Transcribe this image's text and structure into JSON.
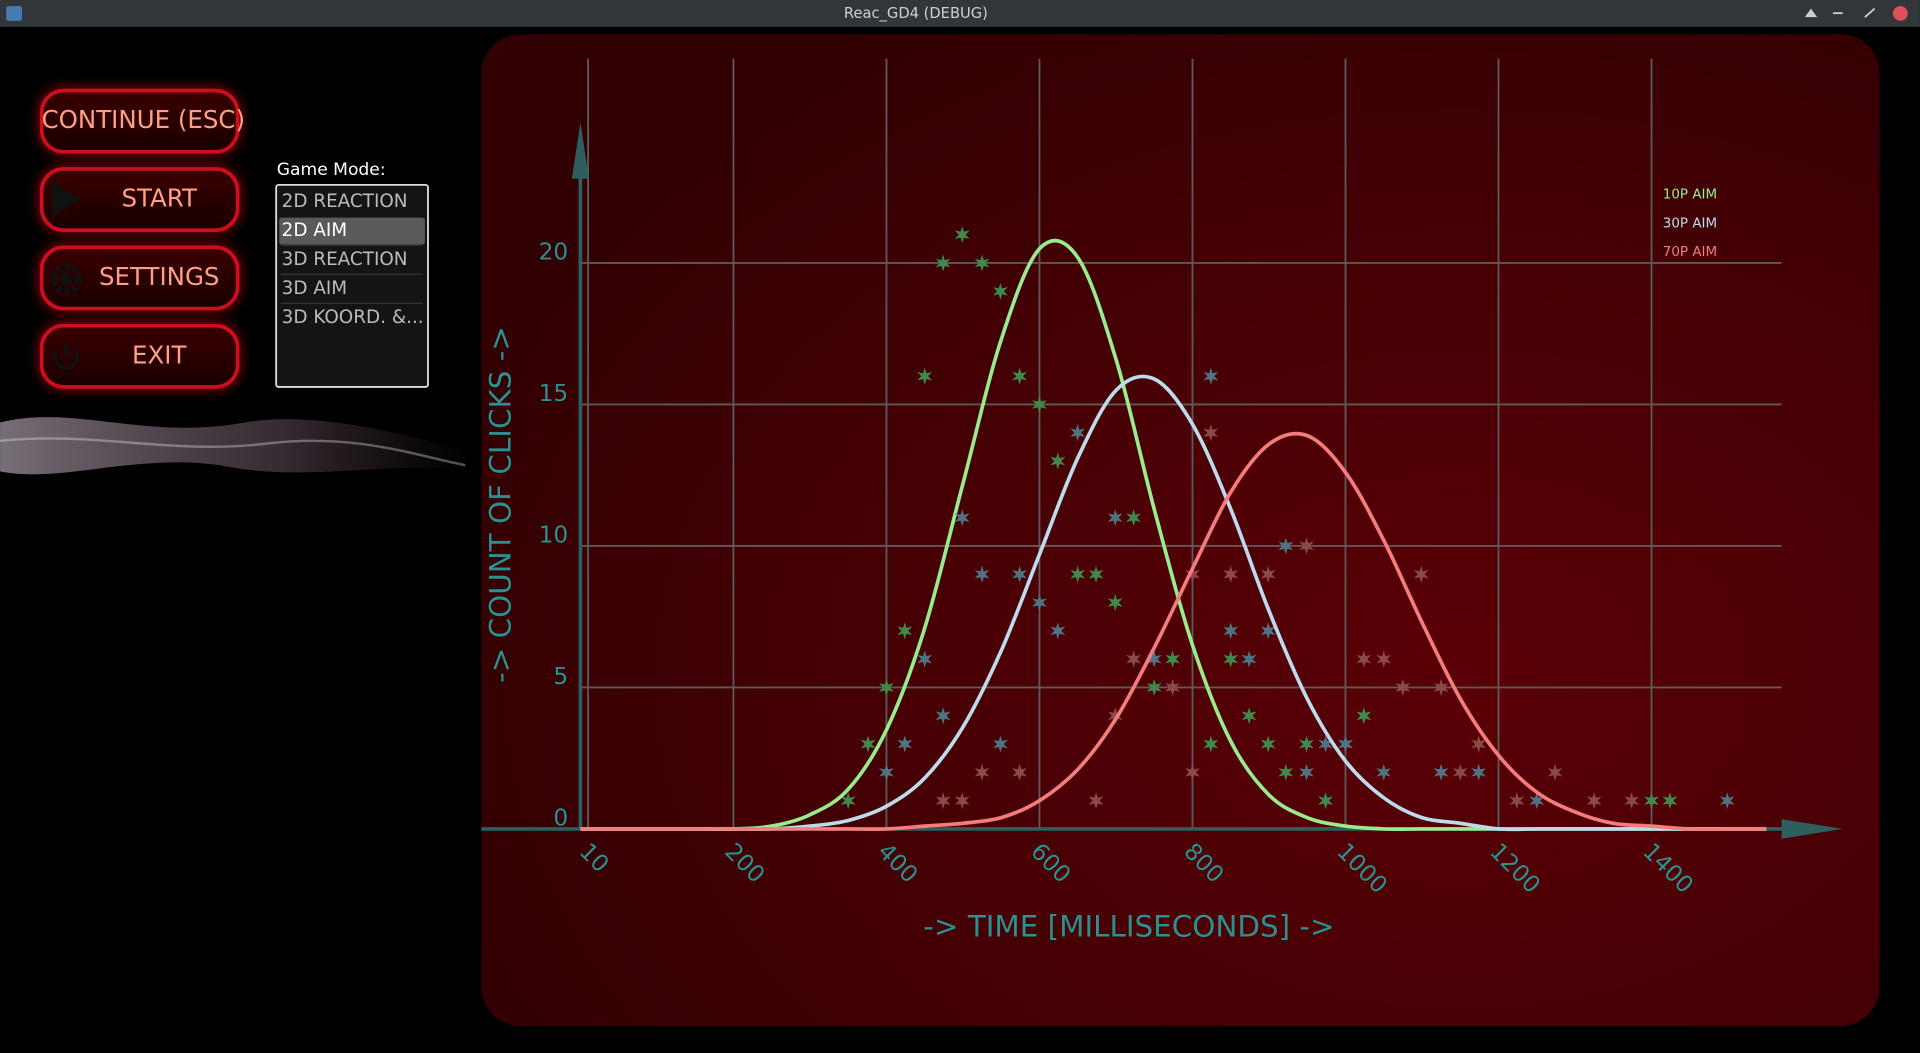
{
  "window": {
    "title": "Reac_GD4 (DEBUG)"
  },
  "menu": {
    "buttons": [
      "CONTINUE (ESC)",
      "START",
      "SETTINGS",
      "EXIT"
    ]
  },
  "game_mode": {
    "label": "Game Mode:",
    "options": [
      "2D REACTION",
      "2D AIM",
      "3D REACTION",
      "3D AIM",
      "3D KOORD. &..."
    ],
    "selected_index": 1
  },
  "chart_data": {
    "type": "line",
    "x_label": "-> TIME [MILLISECONDS] ->",
    "y_label": "-> COUNT OF CLICKS ->",
    "xlim": [
      0,
      1570
    ],
    "ylim": [
      0,
      27
    ],
    "xticks": [
      10,
      200,
      400,
      600,
      800,
      1000,
      1200,
      1400
    ],
    "yticks": [
      0,
      5,
      10,
      15,
      20
    ],
    "grid": true,
    "legend": "top-right",
    "x": [
      0,
      50,
      100,
      150,
      200,
      250,
      300,
      350,
      400,
      450,
      500,
      550,
      600,
      650,
      700,
      750,
      800,
      850,
      900,
      950,
      1000,
      1050,
      1100,
      1150,
      1200,
      1250,
      1300,
      1350,
      1400,
      1450,
      1500,
      1550
    ],
    "series": [
      {
        "name": "10P AIM",
        "color": "#98ec8c",
        "point_color": "#3f8a4a",
        "values": [
          0,
          0,
          0,
          0,
          0,
          0.1,
          0.5,
          1.4,
          3.5,
          7.1,
          12.2,
          17.3,
          20.5,
          20.2,
          16.6,
          11.3,
          6.5,
          3.1,
          1.2,
          0.4,
          0.1,
          0,
          0,
          0,
          0,
          0,
          0,
          0,
          0,
          0,
          0,
          0
        ],
        "points": {
          "x": [
            499,
            474,
            525,
            549,
            450,
            574,
            600,
            624,
            424,
            400,
            376,
            350,
            650,
            674,
            699,
            750,
            774,
            824,
            850,
            874,
            899,
            922,
            949,
            974,
            1024,
            1000,
            1400,
            1424,
            723
          ],
          "y": [
            21,
            20,
            20,
            19,
            16,
            16,
            15,
            13,
            7,
            5,
            3,
            1,
            9,
            9,
            8,
            5,
            6,
            3,
            6,
            4,
            3,
            2,
            3,
            1,
            4,
            3,
            1,
            1,
            11
          ]
        }
      },
      {
        "name": "30P AIM",
        "color": "#bcdcee",
        "point_color": "#4f7382",
        "values": [
          0,
          0,
          0,
          0,
          0,
          0,
          0.1,
          0.3,
          0.8,
          1.8,
          3.6,
          6.3,
          9.7,
          13.1,
          15.5,
          15.9,
          14.3,
          11.3,
          7.7,
          4.6,
          2.4,
          1.1,
          0.4,
          0.2,
          0,
          0,
          0,
          0,
          0,
          0,
          0,
          0
        ],
        "points": {
          "x": [
            499,
            525,
            474,
            450,
            424,
            400,
            574,
            549,
            600,
            624,
            650,
            699,
            824,
            750,
            850,
            874,
            899,
            922,
            974,
            1000,
            949,
            1050,
            1125,
            1174,
            1250,
            1499
          ],
          "y": [
            11,
            9,
            4,
            6,
            3,
            2,
            9,
            3,
            8,
            7,
            14,
            11,
            16,
            6,
            7,
            6,
            7,
            10,
            3,
            3,
            2,
            2,
            2,
            2,
            1,
            1
          ]
        }
      },
      {
        "name": "70P AIM",
        "color": "#f47c7c",
        "point_color": "#8a4a4a",
        "values": [
          0,
          0,
          0,
          0,
          0,
          0,
          0,
          0,
          0,
          0.1,
          0.2,
          0.4,
          1.0,
          2.1,
          3.9,
          6.4,
          9.2,
          11.9,
          13.6,
          13.9,
          12.6,
          10.2,
          7.3,
          4.6,
          2.6,
          1.3,
          0.6,
          0.2,
          0.1,
          0,
          0,
          0
        ],
        "points": {
          "x": [
            474,
            499,
            525,
            574,
            674,
            699,
            723,
            774,
            800,
            824,
            850,
            899,
            949,
            1024,
            1050,
            1075,
            1099,
            1125,
            800,
            1150,
            1174,
            1224,
            1274,
            1325,
            1374
          ],
          "y": [
            1,
            1,
            2,
            2,
            1,
            4,
            6,
            5,
            9,
            14,
            9,
            9,
            10,
            6,
            6,
            5,
            9,
            5,
            2,
            2,
            3,
            1,
            2,
            1,
            1
          ]
        }
      }
    ]
  }
}
